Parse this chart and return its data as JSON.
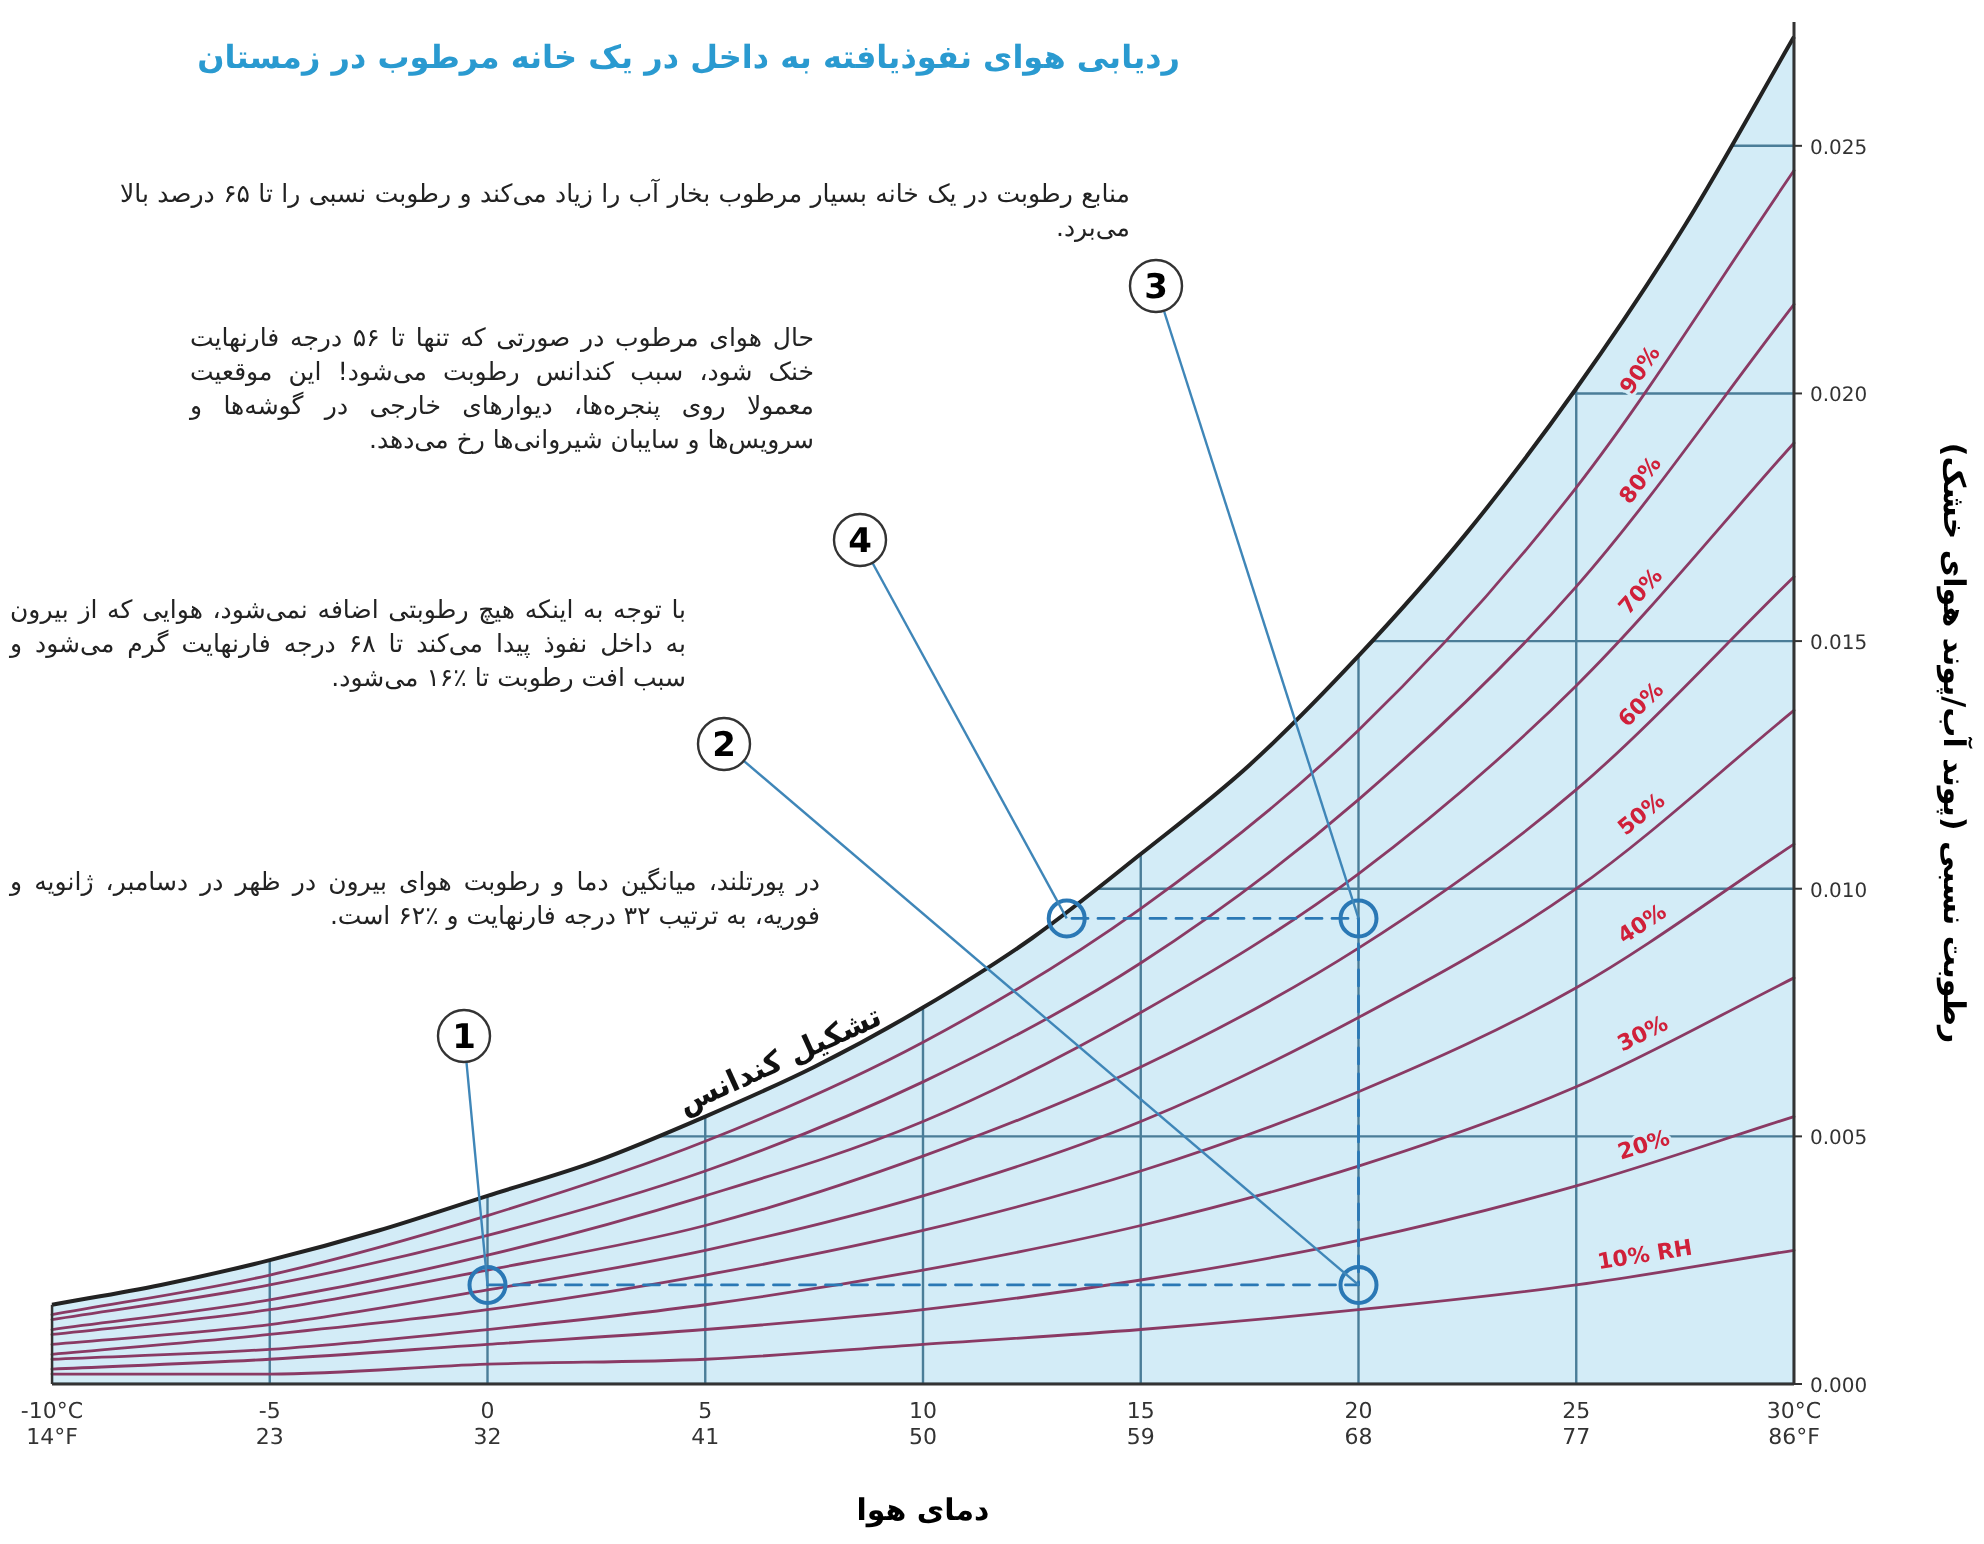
{
  "chart_data": {
    "type": "line",
    "title": "ردیابی هوای نفوذیافته به داخل در یک خانه مرطوب در زمستان",
    "xlabel": "دمای هوا",
    "ylabel": "رطوبت نسبی (پوند آب/پوند هوای خشک)",
    "xlim": [
      -10,
      30
    ],
    "xticks": [
      {
        "value": -10,
        "label": "-10°C"
      },
      -5,
      0,
      5,
      10,
      15,
      20,
      25,
      {
        "value": 30,
        "label": "30°C"
      }
    ],
    "x2lim": [
      14,
      86
    ],
    "x2ticks": [
      {
        "value": 14,
        "label": "14°F"
      },
      23,
      32,
      41,
      50,
      59,
      68,
      77,
      {
        "value": 86,
        "label": "86°F"
      }
    ],
    "ylim": [
      0,
      0.0275
    ],
    "yticks": [
      {
        "value": 0,
        "label": "0.000"
      },
      {
        "value": 0.005,
        "label": "0.005"
      },
      {
        "value": 0.01,
        "label": "0.010"
      },
      {
        "value": 0.015,
        "label": "0.015"
      },
      {
        "value": 0.02,
        "label": "0.020"
      },
      {
        "value": 0.025,
        "label": "0.025"
      }
    ],
    "grid": true,
    "x": [
      -10,
      -5,
      0,
      5,
      10,
      15,
      20,
      25,
      30
    ],
    "series": [
      {
        "type": "area",
        "name": "تشکیل کندانس",
        "color": "#d3ecf7",
        "x": [
          -10,
          -7.5,
          -5,
          -2.5,
          0,
          2.5,
          5,
          7.5,
          10,
          12.5,
          15,
          17.5,
          20,
          22.5,
          25,
          27.5,
          30
        ],
        "values": [
          0.0016,
          0.002,
          0.0025,
          0.0031,
          0.0038,
          0.0045,
          0.0054,
          0.0064,
          0.0076,
          0.009,
          0.0107,
          0.0125,
          0.0147,
          0.0172,
          0.0201,
          0.0234,
          0.0272
        ]
      },
      {
        "name": "90%",
        "color": "#8a3a64",
        "values": [
          0.0014,
          0.0022,
          0.0034,
          0.0049,
          0.0069,
          0.0096,
          0.0132,
          0.0181,
          0.0245
        ]
      },
      {
        "name": "80%",
        "color": "#8a3a64",
        "values": [
          0.0013,
          0.002,
          0.003,
          0.0043,
          0.0061,
          0.0085,
          0.0118,
          0.0161,
          0.0218
        ]
      },
      {
        "name": "70%",
        "color": "#8a3a64",
        "values": [
          0.0011,
          0.0017,
          0.0026,
          0.0038,
          0.0053,
          0.0075,
          0.0103,
          0.0141,
          0.019
        ]
      },
      {
        "name": "60%",
        "color": "#8a3a64",
        "values": [
          0.001,
          0.0015,
          0.0023,
          0.0032,
          0.0046,
          0.0064,
          0.0088,
          0.012,
          0.0163
        ]
      },
      {
        "name": "50%",
        "color": "#8a3a64",
        "values": [
          0.0008,
          0.0012,
          0.0019,
          0.0027,
          0.0038,
          0.0053,
          0.0074,
          0.01,
          0.0136
        ]
      },
      {
        "name": "40%",
        "color": "#8a3a64",
        "values": [
          0.0006,
          0.001,
          0.0015,
          0.0022,
          0.0031,
          0.0043,
          0.0059,
          0.008,
          0.0109
        ]
      },
      {
        "name": "30%",
        "color": "#8a3a64",
        "values": [
          0.0005,
          0.0007,
          0.0011,
          0.0016,
          0.0023,
          0.0032,
          0.0044,
          0.006,
          0.0082
        ]
      },
      {
        "name": "20%",
        "color": "#8a3a64",
        "values": [
          0.0003,
          0.0005,
          0.0008,
          0.0011,
          0.0015,
          0.0021,
          0.0029,
          0.004,
          0.0054
        ]
      },
      {
        "name": "10% RH",
        "color": "#8a3a64",
        "values": [
          0.0002,
          0.0002,
          0.0004,
          0.0005,
          0.0008,
          0.0011,
          0.0015,
          0.002,
          0.0027
        ]
      },
      {
        "color": "#2a78b5",
        "marker": "circle",
        "line_style": "dashed",
        "x": [
          0,
          20,
          20,
          13.3
        ],
        "values": [
          0.002,
          0.002,
          0.0094,
          0.0094
        ]
      }
    ],
    "annotations": [
      "منابع رطوبت در یک خانه بسیار مرطوب بخار آب را زیاد می‌کند و رطوبت نسبی را تا ۶۵ درصد بالا می‌برد.",
      "حال هوای مرطوب در صورتی که تنها تا ۵۶ درجه فارنهایت خنک شود، سبب کندانس رطوبت می‌شود! این موقعیت معمولا روی پنجره‌ها، دیوارهای خارجی در گوشه‌ها و سرویس‌ها و سایبان شیروانی‌ها رخ می‌دهد.",
      "با توجه به اینکه هیچ رطوبتی اضافه نمی‌شود، هوایی که از بیرون به داخل نفوذ پیدا می‌کند تا ۶۸ درجه فارنهایت گرم می‌شود و سبب افت رطوبت تا ٪۱۶ می‌شود.",
      "در پورتلند، میانگین دما و رطوبت هوای بیرون در ظهر در دسامبر، ژانویه و فوریه، به ترتیب ۳۲ درجه فارنهایت و ٪۶۲ است.",
      {
        "text": "1",
        "x": 0,
        "y": 0.002
      },
      {
        "text": "2",
        "x": 20,
        "y": 0.002
      },
      {
        "text": "3",
        "x": 20,
        "y": 0.0094
      },
      {
        "text": "4",
        "x": 13.3,
        "y": 0.0094
      }
    ]
  }
}
